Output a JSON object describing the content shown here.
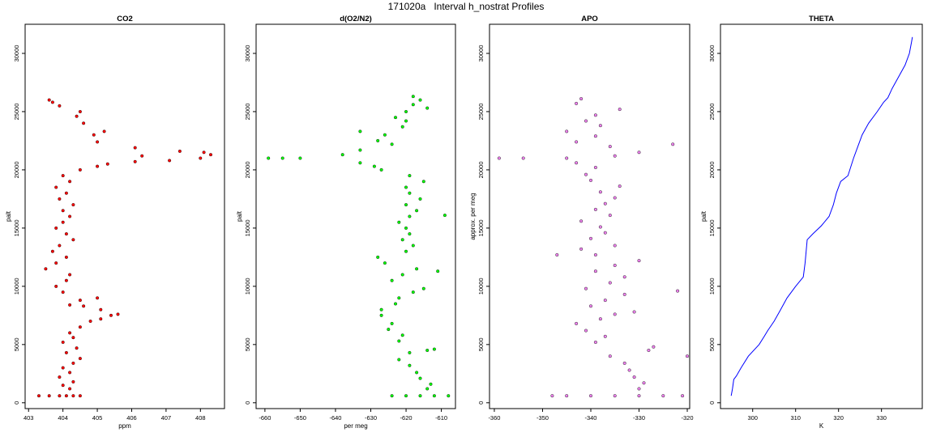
{
  "page_title": "171020a   Interval h_nostrat Profiles",
  "chart_data": [
    {
      "type": "scatter",
      "title": "CO2",
      "xlabel": "ppm",
      "ylabel": "palt",
      "xlim": [
        402.9,
        408.7
      ],
      "ylim": [
        -500,
        32500
      ],
      "xticks": [
        403,
        404,
        405,
        406,
        407,
        408
      ],
      "yticks": [
        0,
        5000,
        10000,
        15000,
        20000,
        25000,
        30000
      ],
      "color": "#ff0000",
      "series": [
        {
          "points": [
            [
              403.9,
              600
            ],
            [
              404.1,
              600
            ],
            [
              404.3,
              600
            ],
            [
              404.5,
              600
            ],
            [
              403.3,
              600
            ],
            [
              403.6,
              600
            ],
            [
              404.2,
              1200
            ],
            [
              404.0,
              1500
            ],
            [
              404.3,
              1800
            ],
            [
              403.9,
              2200
            ],
            [
              404.2,
              2600
            ],
            [
              404.0,
              3000
            ],
            [
              404.3,
              3400
            ],
            [
              404.5,
              3800
            ],
            [
              404.1,
              4300
            ],
            [
              404.4,
              4700
            ],
            [
              404.0,
              5200
            ],
            [
              404.3,
              5600
            ],
            [
              404.2,
              6000
            ],
            [
              404.5,
              6500
            ],
            [
              404.8,
              7000
            ],
            [
              405.1,
              7200
            ],
            [
              405.4,
              7500
            ],
            [
              405.6,
              7600
            ],
            [
              405.1,
              8000
            ],
            [
              404.6,
              8300
            ],
            [
              404.2,
              8400
            ],
            [
              404.5,
              8800
            ],
            [
              405.0,
              9000
            ],
            [
              404.0,
              9500
            ],
            [
              403.8,
              10000
            ],
            [
              404.1,
              10500
            ],
            [
              404.2,
              11000
            ],
            [
              403.5,
              11500
            ],
            [
              403.8,
              12000
            ],
            [
              404.1,
              12500
            ],
            [
              403.7,
              13000
            ],
            [
              403.9,
              13500
            ],
            [
              404.3,
              14000
            ],
            [
              404.1,
              14500
            ],
            [
              403.8,
              15000
            ],
            [
              404.0,
              15500
            ],
            [
              404.2,
              16000
            ],
            [
              404.0,
              16500
            ],
            [
              404.3,
              17000
            ],
            [
              403.9,
              17500
            ],
            [
              404.1,
              18000
            ],
            [
              403.8,
              18500
            ],
            [
              404.2,
              19000
            ],
            [
              404.0,
              19500
            ],
            [
              404.5,
              20000
            ],
            [
              405.0,
              20300
            ],
            [
              405.3,
              20500
            ],
            [
              406.1,
              20700
            ],
            [
              407.1,
              20800
            ],
            [
              408.0,
              21000
            ],
            [
              406.3,
              21200
            ],
            [
              408.3,
              21300
            ],
            [
              408.1,
              21500
            ],
            [
              407.4,
              21600
            ],
            [
              406.1,
              21900
            ],
            [
              405.0,
              22400
            ],
            [
              404.9,
              23000
            ],
            [
              405.2,
              23300
            ],
            [
              404.6,
              24000
            ],
            [
              404.4,
              24600
            ],
            [
              404.5,
              25000
            ],
            [
              403.9,
              25500
            ],
            [
              403.7,
              25800
            ],
            [
              403.6,
              26000
            ]
          ]
        }
      ]
    },
    {
      "type": "scatter",
      "title": "d(O2/N2)",
      "xlabel": "per meg",
      "ylabel": "palt",
      "xlim": [
        -662.5,
        -606
      ],
      "ylim": [
        -500,
        32500
      ],
      "xticks": [
        -660,
        -650,
        -640,
        -630,
        -620,
        -610
      ],
      "yticks": [
        0,
        5000,
        10000,
        15000,
        20000,
        25000,
        30000
      ],
      "color": "#00ff00",
      "series": [
        {
          "points": [
            [
              -620,
              600
            ],
            [
              -616,
              600
            ],
            [
              -612,
              600
            ],
            [
              -608,
              600
            ],
            [
              -624,
              600
            ],
            [
              -614,
              1200
            ],
            [
              -613,
              1600
            ],
            [
              -616,
              2100
            ],
            [
              -617,
              2600
            ],
            [
              -619,
              3200
            ],
            [
              -622,
              3700
            ],
            [
              -619,
              4300
            ],
            [
              -614,
              4500
            ],
            [
              -612,
              4600
            ],
            [
              -622,
              5300
            ],
            [
              -621,
              5800
            ],
            [
              -625,
              6300
            ],
            [
              -624,
              6800
            ],
            [
              -627,
              7500
            ],
            [
              -627,
              8000
            ],
            [
              -623,
              8500
            ],
            [
              -622,
              9000
            ],
            [
              -618,
              9500
            ],
            [
              -615,
              9800
            ],
            [
              -624,
              10500
            ],
            [
              -621,
              11000
            ],
            [
              -617,
              11500
            ],
            [
              -626,
              12000
            ],
            [
              -628,
              12500
            ],
            [
              -620,
              13000
            ],
            [
              -618,
              13500
            ],
            [
              -621,
              14000
            ],
            [
              -619,
              14500
            ],
            [
              -620,
              15000
            ],
            [
              -622,
              15500
            ],
            [
              -619,
              16000
            ],
            [
              -617,
              16500
            ],
            [
              -620,
              17000
            ],
            [
              -616,
              17500
            ],
            [
              -619,
              18000
            ],
            [
              -620,
              18500
            ],
            [
              -615,
              19000
            ],
            [
              -619,
              19500
            ],
            [
              -627,
              20000
            ],
            [
              -629,
              20300
            ],
            [
              -633,
              20600
            ],
            [
              -650,
              21000
            ],
            [
              -655,
              21000
            ],
            [
              -638,
              21300
            ],
            [
              -633,
              21700
            ],
            [
              -624,
              22200
            ],
            [
              -628,
              22500
            ],
            [
              -626,
              23000
            ],
            [
              -633,
              23300
            ],
            [
              -621,
              23700
            ],
            [
              -620,
              24200
            ],
            [
              -623,
              24500
            ],
            [
              -620,
              25000
            ],
            [
              -614,
              25300
            ],
            [
              -618,
              25600
            ],
            [
              -616,
              26000
            ],
            [
              -618,
              26300
            ],
            [
              -659,
              21000
            ],
            [
              -609,
              16100
            ],
            [
              -611,
              11300
            ]
          ]
        }
      ]
    },
    {
      "type": "scatter",
      "title": "APO",
      "xlabel": "",
      "ylabel": "approx. per meg",
      "xlim": [
        -361,
        -319.5
      ],
      "ylim": [
        -500,
        32500
      ],
      "xticks": [
        -360,
        -350,
        -340,
        -330,
        -320
      ],
      "yticks": [
        0,
        5000,
        10000,
        15000,
        20000,
        25000,
        30000
      ],
      "color": "#ee82ee",
      "series": [
        {
          "points": [
            [
              -340,
              600
            ],
            [
              -335,
              600
            ],
            [
              -330,
              600
            ],
            [
              -325,
              600
            ],
            [
              -345,
              600
            ],
            [
              -348,
              600
            ],
            [
              -321,
              600
            ],
            [
              -330,
              1200
            ],
            [
              -329,
              1700
            ],
            [
              -331,
              2200
            ],
            [
              -332,
              2800
            ],
            [
              -333,
              3400
            ],
            [
              -336,
              4000
            ],
            [
              -328,
              4500
            ],
            [
              -327,
              4800
            ],
            [
              -339,
              5200
            ],
            [
              -337,
              5700
            ],
            [
              -341,
              6200
            ],
            [
              -343,
              6800
            ],
            [
              -338,
              7200
            ],
            [
              -335,
              7600
            ],
            [
              -331,
              7800
            ],
            [
              -340,
              8300
            ],
            [
              -337,
              8800
            ],
            [
              -333,
              9300
            ],
            [
              -341,
              9800
            ],
            [
              -336,
              10300
            ],
            [
              -333,
              10800
            ],
            [
              -339,
              11300
            ],
            [
              -335,
              11800
            ],
            [
              -330,
              12200
            ],
            [
              -339,
              12700
            ],
            [
              -347,
              12700
            ],
            [
              -342,
              13200
            ],
            [
              -335,
              13500
            ],
            [
              -340,
              14100
            ],
            [
              -337,
              14600
            ],
            [
              -338,
              15100
            ],
            [
              -342,
              15600
            ],
            [
              -336,
              16100
            ],
            [
              -339,
              16600
            ],
            [
              -337,
              17100
            ],
            [
              -335,
              17600
            ],
            [
              -338,
              18100
            ],
            [
              -334,
              18600
            ],
            [
              -340,
              19100
            ],
            [
              -341,
              19600
            ],
            [
              -339,
              20200
            ],
            [
              -343,
              20600
            ],
            [
              -345,
              21000
            ],
            [
              -354,
              21000
            ],
            [
              -359,
              21000
            ],
            [
              -335,
              21200
            ],
            [
              -330,
              21500
            ],
            [
              -336,
              22000
            ],
            [
              -343,
              22400
            ],
            [
              -339,
              22900
            ],
            [
              -345,
              23300
            ],
            [
              -338,
              23800
            ],
            [
              -341,
              24200
            ],
            [
              -339,
              24700
            ],
            [
              -334,
              25200
            ],
            [
              -343,
              25700
            ],
            [
              -342,
              26100
            ],
            [
              -323,
              22200
            ],
            [
              -322,
              9600
            ],
            [
              -320,
              4000
            ]
          ]
        }
      ]
    },
    {
      "type": "line",
      "title": "THETA",
      "xlabel": "K",
      "ylabel": "palt",
      "xlim": [
        292.5,
        339.5
      ],
      "ylim": [
        -500,
        32500
      ],
      "xticks": [
        300,
        310,
        320,
        330
      ],
      "yticks": [
        0,
        5000,
        10000,
        15000,
        20000,
        25000,
        30000
      ],
      "color": "#0000ff",
      "series": [
        {
          "points": [
            [
              295.0,
              600
            ],
            [
              295.3,
              1200
            ],
            [
              295.6,
              2000
            ],
            [
              296.2,
              2300
            ],
            [
              297.3,
              3000
            ],
            [
              299.0,
              4000
            ],
            [
              301.5,
              5000
            ],
            [
              302.7,
              5700
            ],
            [
              303.5,
              6200
            ],
            [
              305.0,
              7000
            ],
            [
              306.5,
              8000
            ],
            [
              308.0,
              9000
            ],
            [
              310.0,
              10000
            ],
            [
              311.8,
              10800
            ],
            [
              312.2,
              12000
            ],
            [
              312.7,
              14000
            ],
            [
              314.0,
              14500
            ],
            [
              316.0,
              15200
            ],
            [
              317.8,
              16000
            ],
            [
              318.8,
              17000
            ],
            [
              319.5,
              18000
            ],
            [
              320.5,
              19000
            ],
            [
              322.2,
              19500
            ],
            [
              323.5,
              21000
            ],
            [
              324.5,
              22000
            ],
            [
              325.5,
              23000
            ],
            [
              327.0,
              24000
            ],
            [
              329.0,
              25000
            ],
            [
              330.5,
              25800
            ],
            [
              331.5,
              26200
            ],
            [
              332.5,
              27000
            ],
            [
              334.0,
              28000
            ],
            [
              335.5,
              29000
            ],
            [
              336.5,
              30000
            ],
            [
              337.0,
              31000
            ],
            [
              337.2,
              31400
            ]
          ]
        }
      ]
    }
  ]
}
